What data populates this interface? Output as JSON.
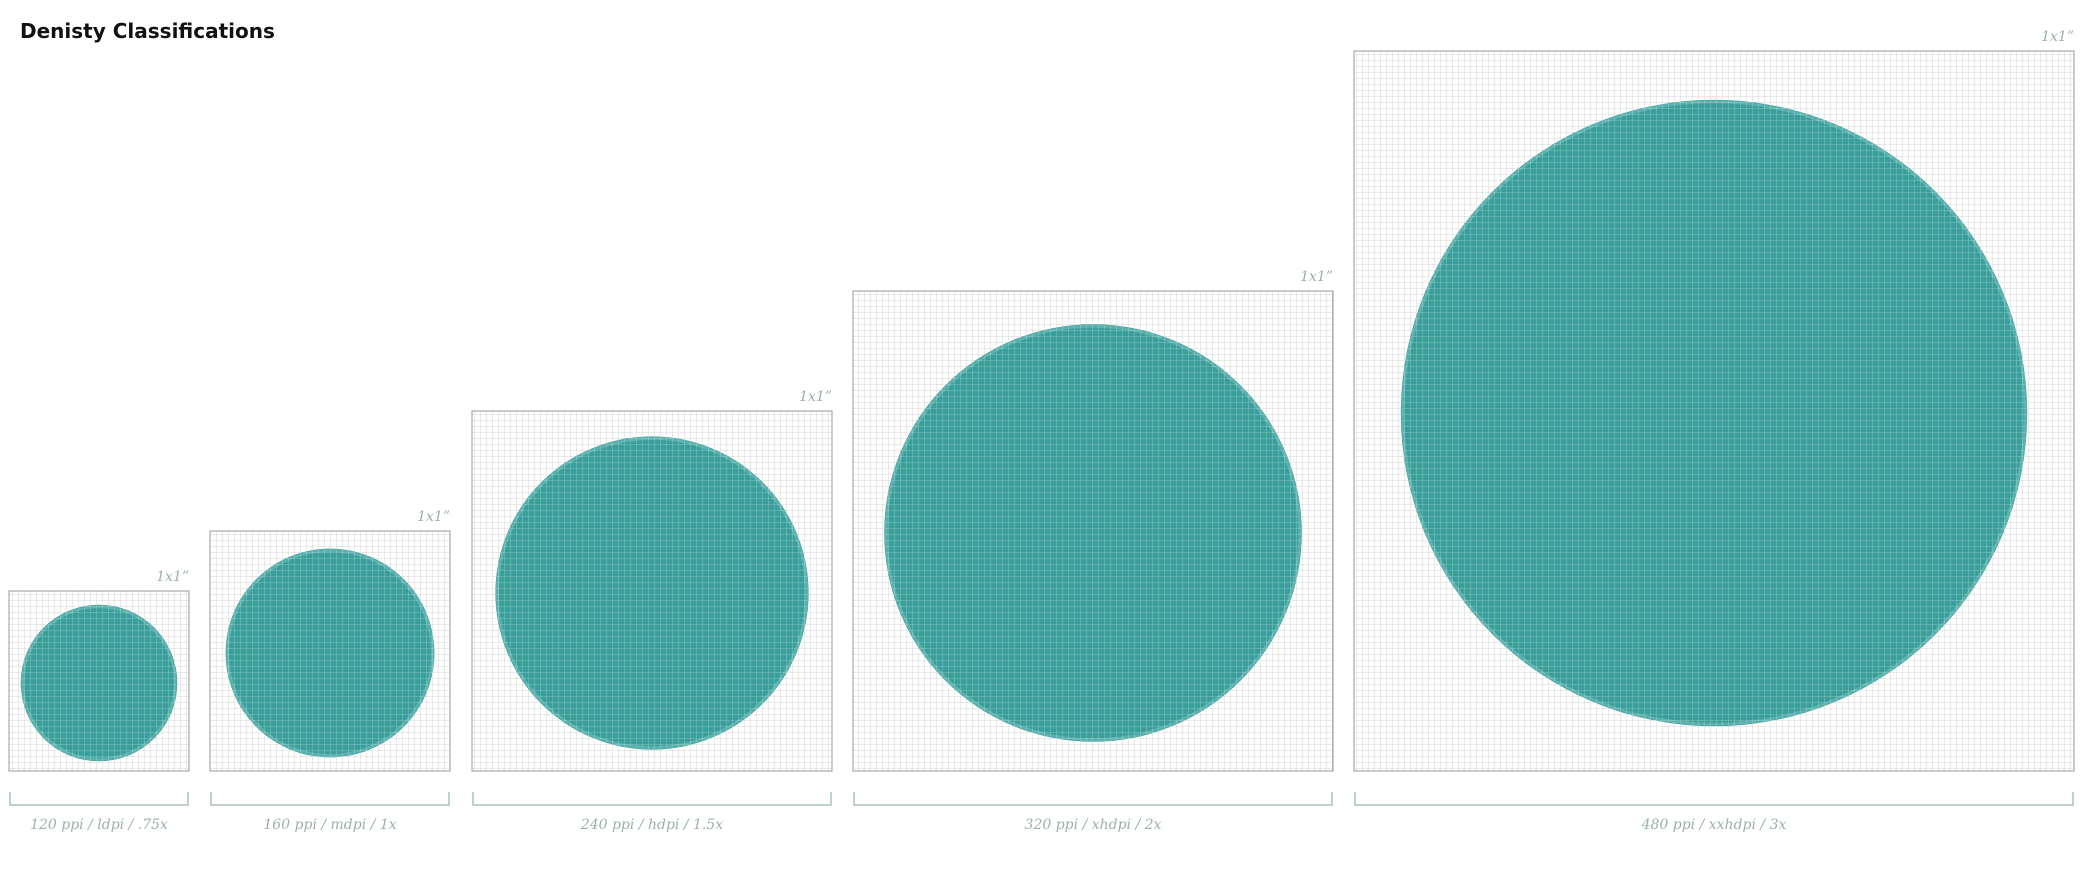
{
  "header": {
    "title": "Denisty Classifications"
  },
  "densities": [
    {
      "size_label": "1x1”",
      "caption": "120 ppi / ldpi / .75x"
    },
    {
      "size_label": "1x1”",
      "caption": "160 ppi / mdpi / 1x"
    },
    {
      "size_label": "1x1”",
      "caption": "240 ppi / hdpi / 1.5x"
    },
    {
      "size_label": "1x1”",
      "caption": "320 ppi / xhdpi / 2x"
    },
    {
      "size_label": "1x1”",
      "caption": "480 ppi / xxhdpi / 3x"
    }
  ]
}
